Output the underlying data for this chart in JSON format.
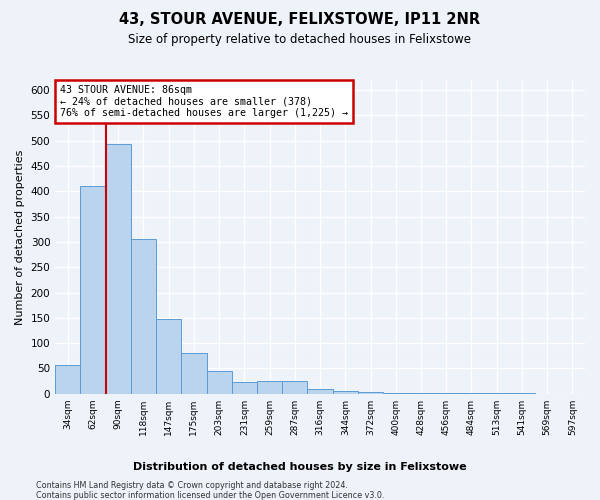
{
  "title": "43, STOUR AVENUE, FELIXSTOWE, IP11 2NR",
  "subtitle": "Size of property relative to detached houses in Felixstowe",
  "xlabel": "Distribution of detached houses by size in Felixstowe",
  "ylabel": "Number of detached properties",
  "bar_values": [
    57,
    411,
    493,
    305,
    148,
    81,
    45,
    24,
    25,
    25,
    10,
    5,
    3,
    2,
    2,
    1,
    1,
    1,
    1,
    0,
    0
  ],
  "bar_labels": [
    "34sqm",
    "62sqm",
    "90sqm",
    "118sqm",
    "147sqm",
    "175sqm",
    "203sqm",
    "231sqm",
    "259sqm",
    "287sqm",
    "316sqm",
    "344sqm",
    "372sqm",
    "400sqm",
    "428sqm",
    "456sqm",
    "484sqm",
    "513sqm",
    "541sqm",
    "569sqm",
    "597sqm"
  ],
  "bar_color": "#bad4ee",
  "bar_edge_color": "#5b9bd5",
  "annotation_box_text": "43 STOUR AVENUE: 86sqm\n← 24% of detached houses are smaller (378)\n76% of semi-detached houses are larger (1,225) →",
  "annotation_box_color": "#ffffff",
  "annotation_box_border": "#cc0000",
  "line_color": "#cc0000",
  "line_x_index": 1.5,
  "ylim": [
    0,
    620
  ],
  "yticks": [
    0,
    50,
    100,
    150,
    200,
    250,
    300,
    350,
    400,
    450,
    500,
    550,
    600
  ],
  "footer1": "Contains HM Land Registry data © Crown copyright and database right 2024.",
  "footer2": "Contains public sector information licensed under the Open Government Licence v3.0.",
  "bg_color": "#eef2f9",
  "grid_color": "#ffffff"
}
